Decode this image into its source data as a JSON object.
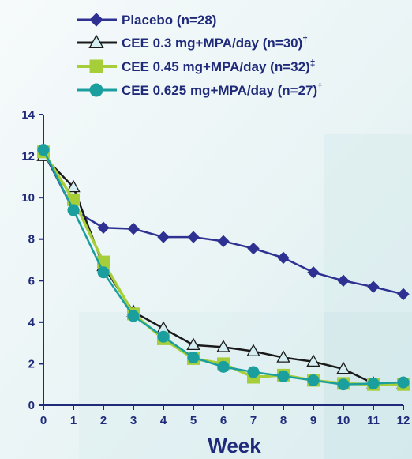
{
  "chart_data": {
    "type": "line",
    "title": "",
    "xlabel": "Week",
    "ylabel": "",
    "x": [
      0,
      1,
      2,
      3,
      4,
      5,
      6,
      7,
      8,
      9,
      10,
      11,
      12
    ],
    "xlim": [
      0,
      12
    ],
    "ylim": [
      0,
      14
    ],
    "x_ticks": [
      "0",
      "1",
      "2",
      "3",
      "4",
      "5",
      "6",
      "7",
      "8",
      "9",
      "10",
      "11",
      "12"
    ],
    "y_ticks": [
      "0",
      "2",
      "4",
      "6",
      "8",
      "10",
      "12",
      "14"
    ],
    "grid": false,
    "legend_position": "top",
    "series": [
      {
        "name": "Placebo (n=28)",
        "color": "#2e3192",
        "marker": "diamond",
        "values": [
          12.2,
          9.4,
          8.55,
          8.5,
          8.1,
          8.1,
          7.9,
          7.55,
          7.1,
          6.4,
          6.0,
          5.7,
          5.35
        ]
      },
      {
        "name": "CEE 0.3 mg+MPA/day (n=30)",
        "name_suffix": "†",
        "color": "#1a1a1a",
        "marker_fill": "#d5eef1",
        "marker": "triangle",
        "values": [
          12.0,
          10.5,
          6.7,
          4.5,
          3.7,
          2.9,
          2.8,
          2.6,
          2.3,
          2.1,
          1.75,
          1.05,
          1.05
        ]
      },
      {
        "name": "CEE 0.45 mg+MPA/day (n=32)",
        "name_suffix": "‡",
        "color": "#a6ce39",
        "marker": "square",
        "values": [
          12.2,
          9.9,
          6.9,
          4.4,
          3.2,
          2.25,
          2.0,
          1.35,
          1.45,
          1.2,
          1.05,
          1.0,
          1.0
        ]
      },
      {
        "name": "CEE 0.625 mg+MPA/day (n=27)",
        "name_suffix": "†",
        "color": "#1a9e9e",
        "marker": "circle",
        "values": [
          12.3,
          9.4,
          6.4,
          4.3,
          3.3,
          2.3,
          1.85,
          1.6,
          1.4,
          1.2,
          1.0,
          1.05,
          1.1
        ]
      }
    ]
  }
}
